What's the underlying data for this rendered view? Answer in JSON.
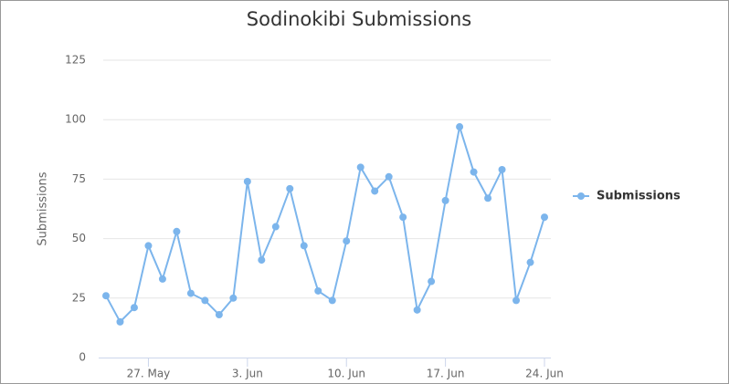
{
  "chart_data": {
    "type": "line",
    "title": "Sodinokibi Submissions",
    "y_axis_label": "Submissions",
    "categories": [
      null,
      null,
      null,
      "27. May",
      null,
      null,
      null,
      null,
      null,
      null,
      "3. Jun",
      null,
      null,
      null,
      null,
      null,
      null,
      "10. Jun",
      null,
      null,
      null,
      null,
      null,
      null,
      "17. Jun",
      null,
      null,
      null,
      null,
      null,
      null,
      "24. Jun"
    ],
    "series": [
      {
        "name": "Submissions",
        "color": "#7cb5ec",
        "values": [
          26,
          15,
          21,
          47,
          33,
          53,
          27,
          24,
          18,
          25,
          74,
          41,
          55,
          71,
          47,
          28,
          24,
          49,
          80,
          70,
          76,
          59,
          20,
          32,
          66,
          97,
          78,
          67,
          79,
          24,
          40,
          59
        ]
      }
    ],
    "ylim": [
      0,
      125
    ],
    "yticks": [
      0,
      25,
      50,
      75,
      100,
      125
    ],
    "grid": true,
    "legend": "right"
  }
}
